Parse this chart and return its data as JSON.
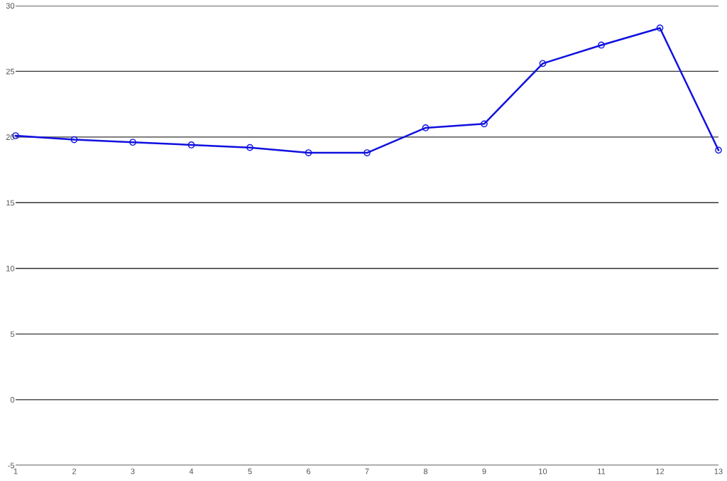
{
  "chart_data": {
    "type": "line",
    "x": [
      1,
      2,
      3,
      4,
      5,
      6,
      7,
      8,
      9,
      10,
      11,
      12,
      13
    ],
    "series": [
      {
        "color": "#1010e0",
        "values": [
          20.1,
          19.8,
          19.6,
          19.4,
          19.2,
          18.8,
          18.8,
          20.7,
          21.0,
          25.6,
          27.0,
          28.3,
          19.0
        ]
      }
    ],
    "xlim": [
      1,
      13
    ],
    "xticks": [
      1,
      2,
      3,
      4,
      5,
      6,
      7,
      8,
      9,
      10,
      11,
      12,
      13
    ],
    "ylim": [
      -5,
      30
    ],
    "yticks": [
      -5,
      0,
      5,
      10,
      15,
      20,
      25,
      30
    ],
    "grid": "y",
    "marker": "circle",
    "line_style": "solid"
  }
}
